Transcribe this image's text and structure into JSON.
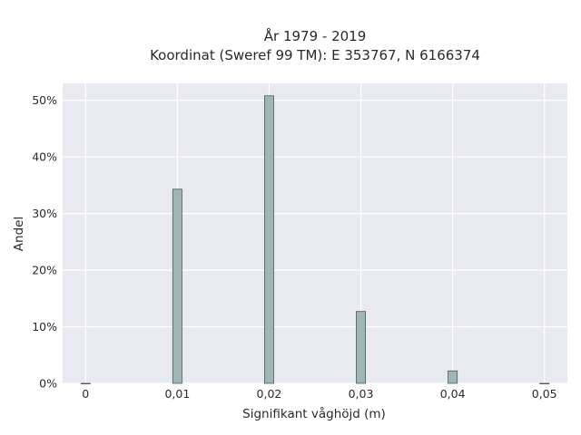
{
  "chart_data": {
    "type": "bar",
    "title_lines": [
      "År 1979 - 2019",
      "Koordinat (Sweref 99 TM): E 353767, N 6166374"
    ],
    "xlabel": "Signifikant våghöjd (m)",
    "ylabel": "Andel",
    "xlim": [
      -0.0025,
      0.0525
    ],
    "ylim": [
      0,
      0.53
    ],
    "x_ticks": [
      0,
      0.01,
      0.02,
      0.03,
      0.04,
      0.05
    ],
    "x_tick_labels": [
      "0",
      "0,01",
      "0,02",
      "0,03",
      "0,04",
      "0,05"
    ],
    "y_ticks": [
      0,
      0.1,
      0.2,
      0.3,
      0.4,
      0.5
    ],
    "y_tick_labels": [
      "0%",
      "10%",
      "20%",
      "30%",
      "40%",
      "50%"
    ],
    "bar_width": 0.001,
    "x": [
      0,
      0.01,
      0.02,
      0.03,
      0.04,
      0.05
    ],
    "values": [
      0.0,
      0.343,
      0.508,
      0.127,
      0.022,
      0.0
    ],
    "grid": true,
    "colors": {
      "plot_bg": "#e9e9f1",
      "grid": "#ffffff",
      "bar_fill": "#9fb6b6",
      "bar_edge": "#4a5a5a",
      "text": "#2a2a2a"
    }
  }
}
